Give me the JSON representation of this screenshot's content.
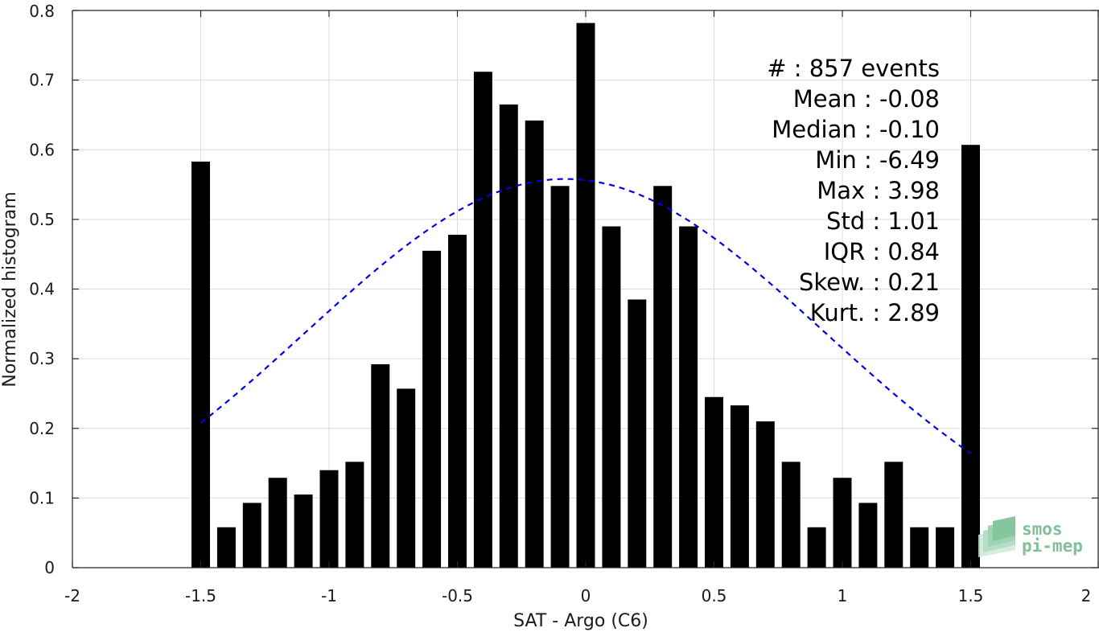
{
  "chart_data": {
    "type": "bar",
    "xlabel": "SAT - Argo (C6)",
    "ylabel": "Normalized histogram",
    "xlim": [
      -2,
      2
    ],
    "ylim": [
      0,
      0.8
    ],
    "xticks": [
      -2,
      -1.5,
      -1,
      -0.5,
      0,
      0.5,
      1,
      1.5,
      2
    ],
    "xtick_labels": [
      "-2",
      "-1.5",
      "-1",
      "-0.5",
      "0",
      "0.5",
      "1",
      "1.5",
      "2"
    ],
    "yticks": [
      0,
      0.1,
      0.2,
      0.3,
      0.4,
      0.5,
      0.6,
      0.7,
      0.8
    ],
    "ytick_labels": [
      "0",
      "0.1",
      "0.2",
      "0.3",
      "0.4",
      "0.5",
      "0.6",
      "0.7",
      "0.8"
    ],
    "grid": true,
    "bar_color": "#000000",
    "bin_width": 0.1,
    "bins": [
      {
        "x": -1.5,
        "value": 0.583
      },
      {
        "x": -1.4,
        "value": 0.058
      },
      {
        "x": -1.3,
        "value": 0.093
      },
      {
        "x": -1.2,
        "value": 0.129
      },
      {
        "x": -1.1,
        "value": 0.105
      },
      {
        "x": -1.0,
        "value": 0.14
      },
      {
        "x": -0.9,
        "value": 0.152
      },
      {
        "x": -0.8,
        "value": 0.292
      },
      {
        "x": -0.7,
        "value": 0.257
      },
      {
        "x": -0.6,
        "value": 0.455
      },
      {
        "x": -0.5,
        "value": 0.478
      },
      {
        "x": -0.4,
        "value": 0.712
      },
      {
        "x": -0.3,
        "value": 0.665
      },
      {
        "x": -0.2,
        "value": 0.642
      },
      {
        "x": -0.1,
        "value": 0.548
      },
      {
        "x": 0.0,
        "value": 0.782
      },
      {
        "x": 0.1,
        "value": 0.49
      },
      {
        "x": 0.2,
        "value": 0.385
      },
      {
        "x": 0.3,
        "value": 0.548
      },
      {
        "x": 0.4,
        "value": 0.49
      },
      {
        "x": 0.5,
        "value": 0.245
      },
      {
        "x": 0.6,
        "value": 0.233
      },
      {
        "x": 0.7,
        "value": 0.21
      },
      {
        "x": 0.8,
        "value": 0.152
      },
      {
        "x": 0.9,
        "value": 0.058
      },
      {
        "x": 1.0,
        "value": 0.129
      },
      {
        "x": 1.1,
        "value": 0.093
      },
      {
        "x": 1.2,
        "value": 0.152
      },
      {
        "x": 1.3,
        "value": 0.058
      },
      {
        "x": 1.4,
        "value": 0.058
      },
      {
        "x": 1.5,
        "value": 0.607
      }
    ],
    "fit_curve": {
      "kind": "gaussian",
      "mean": -0.08,
      "std": 1.01,
      "peak": 0.558,
      "x_range": [
        -1.5,
        1.5
      ],
      "color": "#0000e6",
      "style": "dashed"
    }
  },
  "stats": {
    "lines": [
      "#  : 857 events",
      "Mean : -0.08",
      "Median : -0.10",
      "Min : -6.49",
      "Max : 3.98",
      "Std : 1.01",
      "IQR : 0.84",
      "Skew. : 0.21",
      "Kurt. : 2.89"
    ]
  },
  "logo": {
    "line1": "smos",
    "line2": "pi-mep",
    "color": "#7fbf9a"
  }
}
